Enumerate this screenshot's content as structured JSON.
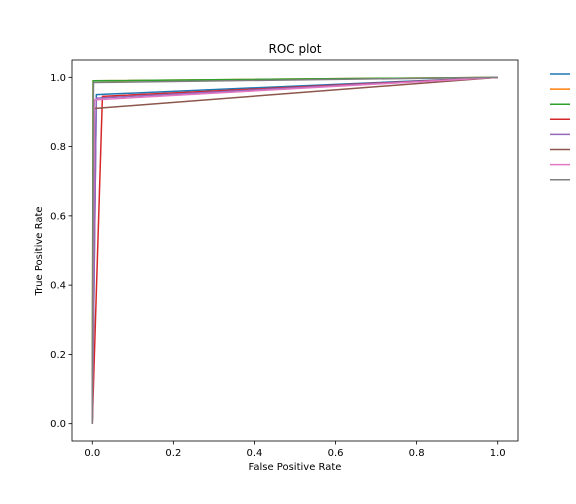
{
  "chart_data": {
    "type": "line",
    "title": "ROC plot",
    "xlabel": "False Positive Rate",
    "ylabel": "True Positive Rate",
    "xlim": [
      -0.05,
      1.05
    ],
    "ylim": [
      -0.05,
      1.05
    ],
    "xticks": [
      "0.0",
      "0.2",
      "0.4",
      "0.6",
      "0.8",
      "1.0"
    ],
    "yticks": [
      "0.0",
      "0.2",
      "0.4",
      "0.6",
      "0.8",
      "1.0"
    ],
    "grid": false,
    "legend_position": "outside-right",
    "series": [
      {
        "color": "#1f77b4",
        "x": [
          0,
          0.01,
          1
        ],
        "y": [
          0,
          0.95,
          1
        ]
      },
      {
        "color": "#ff7f0e",
        "x": [
          0,
          0.002,
          1
        ],
        "y": [
          0,
          0.99,
          1
        ]
      },
      {
        "color": "#2ca02c",
        "x": [
          0,
          0.002,
          1
        ],
        "y": [
          0,
          0.99,
          1
        ]
      },
      {
        "color": "#d62728",
        "x": [
          0,
          0.025,
          1
        ],
        "y": [
          0,
          0.945,
          1
        ]
      },
      {
        "color": "#9467bd",
        "x": [
          0,
          0.01,
          1
        ],
        "y": [
          0,
          0.94,
          1
        ]
      },
      {
        "color": "#8c564b",
        "x": [
          0,
          0.005,
          1
        ],
        "y": [
          0,
          0.91,
          1
        ]
      },
      {
        "color": "#e377c2",
        "x": [
          0,
          0.005,
          1
        ],
        "y": [
          0,
          0.935,
          1
        ]
      },
      {
        "color": "#7f7f7f",
        "x": [
          0,
          0.003,
          1
        ],
        "y": [
          0,
          0.985,
          1
        ]
      }
    ]
  }
}
